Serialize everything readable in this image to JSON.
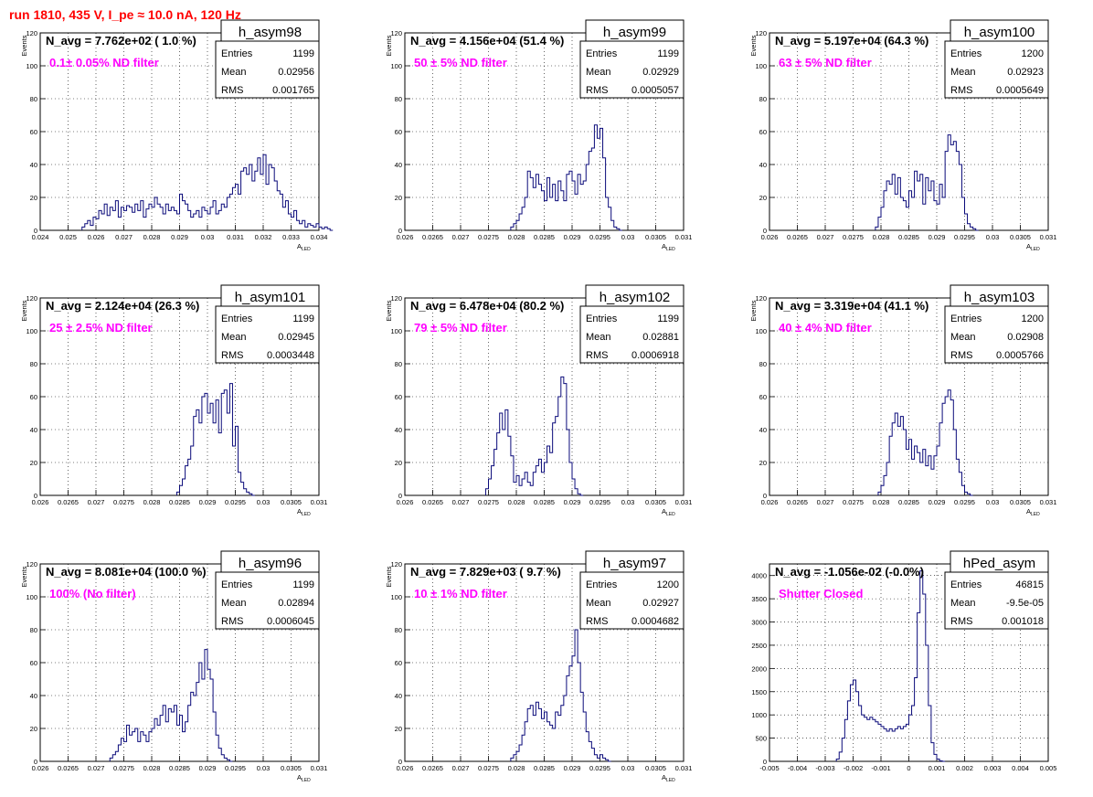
{
  "header": {
    "run_title": "run 1810,   435 V, I_pe ≈ 10.0 nA, 120 Hz"
  },
  "style": {
    "hist_color": "#0a0a7a",
    "annotation_color": "#ff00ff",
    "title_color": "#ff0000"
  },
  "stat_labels": {
    "entries": "Entries",
    "mean": "Mean",
    "rms": "RMS"
  },
  "chart_data": [
    {
      "type": "bar",
      "name": "h_asym98",
      "navg": "N_avg = 7.762e+02 ( 1.0 %)",
      "annotation": "0.1± 0.05% ND filter",
      "entries": "1199",
      "mean": "0.02956",
      "rms": "0.001765",
      "ylabel": "Events",
      "xlabel": "A",
      "xlim": [
        0.024,
        0.034
      ],
      "ylim": [
        0,
        120
      ],
      "xticks": [
        0.024,
        0.025,
        0.026,
        0.027,
        0.028,
        0.029,
        0.03,
        0.031,
        0.032,
        0.033,
        0.034
      ],
      "xtick_labels": [
        "0.024",
        "0.025",
        "0.026",
        "0.027",
        "0.028",
        "0.029",
        "0.03",
        "0.031",
        "0.032",
        "0.033",
        "0.034"
      ],
      "yticks": [
        0,
        20,
        40,
        60,
        80,
        100,
        120
      ],
      "ytick_labels": [
        "0",
        "20",
        "40",
        "60",
        "80",
        "100",
        "120"
      ],
      "bin_start": 0.0255,
      "bin_width": 0.0001,
      "values": [
        2,
        4,
        6,
        3,
        8,
        7,
        12,
        10,
        16,
        9,
        14,
        12,
        18,
        8,
        14,
        12,
        15,
        14,
        11,
        16,
        12,
        18,
        8,
        13,
        16,
        14,
        20,
        16,
        14,
        10,
        16,
        12,
        14,
        12,
        10,
        22,
        18,
        16,
        12,
        8,
        10,
        12,
        8,
        14,
        12,
        10,
        14,
        18,
        10,
        12,
        16,
        14,
        20,
        22,
        26,
        28,
        22,
        36,
        38,
        34,
        40,
        30,
        36,
        44,
        34,
        46,
        28,
        40,
        38,
        30,
        24,
        22,
        14,
        18,
        10,
        8,
        12,
        6,
        4,
        6,
        2,
        4,
        3,
        2,
        4,
        2,
        1,
        2,
        1,
        0
      ]
    },
    {
      "type": "bar",
      "name": "h_asym99",
      "navg": "N_avg = 4.156e+04 (51.4 %)",
      "annotation": "50 ± 5% ND filter",
      "entries": "1199",
      "mean": "0.02929",
      "rms": "0.0005057",
      "ylabel": "Events",
      "xlabel": "A",
      "xlim": [
        0.026,
        0.031
      ],
      "ylim": [
        0,
        120
      ],
      "xticks": [
        0.026,
        0.0265,
        0.027,
        0.0275,
        0.028,
        0.0285,
        0.029,
        0.0295,
        0.03,
        0.0305,
        0.031
      ],
      "xtick_labels": [
        "0.026",
        "0.0265",
        "0.027",
        "0.0275",
        "0.028",
        "0.0285",
        "0.029",
        "0.0295",
        "0.03",
        "0.0305",
        "0.031"
      ],
      "yticks": [
        0,
        20,
        40,
        60,
        80,
        100,
        120
      ],
      "ytick_labels": [
        "0",
        "20",
        "40",
        "60",
        "80",
        "100",
        "120"
      ],
      "bin_start": 0.0279,
      "bin_width": 5e-05,
      "values": [
        2,
        4,
        6,
        10,
        14,
        20,
        36,
        32,
        26,
        34,
        28,
        24,
        18,
        32,
        20,
        28,
        18,
        30,
        24,
        18,
        34,
        36,
        30,
        22,
        34,
        28,
        30,
        40,
        48,
        50,
        64,
        56,
        62,
        44,
        20,
        14,
        6,
        2,
        1,
        0
      ]
    },
    {
      "type": "bar",
      "name": "h_asym100",
      "navg": "N_avg = 5.197e+04 (64.3 %)",
      "annotation": "63 ± 5% ND filter",
      "entries": "1200",
      "mean": "0.02923",
      "rms": "0.0005649",
      "ylabel": "Events",
      "xlabel": "A",
      "xlim": [
        0.026,
        0.031
      ],
      "ylim": [
        0,
        120
      ],
      "xticks": [
        0.026,
        0.0265,
        0.027,
        0.0275,
        0.028,
        0.0285,
        0.029,
        0.0295,
        0.03,
        0.0305,
        0.031
      ],
      "xtick_labels": [
        "0.026",
        "0.0265",
        "0.027",
        "0.0275",
        "0.028",
        "0.0285",
        "0.029",
        "0.0295",
        "0.03",
        "0.0305",
        "0.031"
      ],
      "yticks": [
        0,
        20,
        40,
        60,
        80,
        100,
        120
      ],
      "ytick_labels": [
        "0",
        "20",
        "40",
        "60",
        "80",
        "100",
        "120"
      ],
      "bin_start": 0.0279,
      "bin_width": 5e-05,
      "values": [
        2,
        8,
        14,
        24,
        30,
        28,
        34,
        22,
        32,
        20,
        18,
        14,
        24,
        20,
        36,
        30,
        34,
        16,
        32,
        24,
        30,
        18,
        16,
        28,
        20,
        48,
        58,
        52,
        54,
        48,
        40,
        20,
        10,
        4,
        2,
        1,
        0
      ]
    },
    {
      "type": "bar",
      "name": "h_asym101",
      "navg": "N_avg = 2.124e+04 (26.3 %)",
      "annotation": "25 ± 2.5% ND filter",
      "entries": "1199",
      "mean": "0.02945",
      "rms": "0.0003448",
      "ylabel": "Events",
      "xlabel": "A",
      "xlim": [
        0.026,
        0.031
      ],
      "ylim": [
        0,
        120
      ],
      "xticks": [
        0.026,
        0.0265,
        0.027,
        0.0275,
        0.028,
        0.0285,
        0.029,
        0.0295,
        0.03,
        0.0305,
        0.031
      ],
      "xtick_labels": [
        "0.026",
        "0.0265",
        "0.027",
        "0.0275",
        "0.028",
        "0.0285",
        "0.029",
        "0.0295",
        "0.03",
        "0.0305",
        "0.031"
      ],
      "yticks": [
        0,
        20,
        40,
        60,
        80,
        100,
        120
      ],
      "ytick_labels": [
        "0",
        "20",
        "40",
        "60",
        "80",
        "100",
        "120"
      ],
      "bin_start": 0.02845,
      "bin_width": 5e-05,
      "values": [
        2,
        6,
        10,
        18,
        22,
        30,
        48,
        52,
        44,
        60,
        62,
        50,
        56,
        44,
        58,
        38,
        62,
        64,
        50,
        68,
        30,
        42,
        14,
        8,
        4,
        2,
        1,
        0
      ]
    },
    {
      "type": "bar",
      "name": "h_asym102",
      "navg": "N_avg = 6.478e+04 (80.2 %)",
      "annotation": "79 ± 5% ND filter",
      "entries": "1199",
      "mean": "0.02881",
      "rms": "0.0006918",
      "ylabel": "Events",
      "xlabel": "A",
      "xlim": [
        0.026,
        0.031
      ],
      "ylim": [
        0,
        120
      ],
      "xticks": [
        0.026,
        0.0265,
        0.027,
        0.0275,
        0.028,
        0.0285,
        0.029,
        0.0295,
        0.03,
        0.0305,
        0.031
      ],
      "xtick_labels": [
        "0.026",
        "0.0265",
        "0.027",
        "0.0275",
        "0.028",
        "0.0285",
        "0.029",
        "0.0295",
        "0.03",
        "0.0305",
        "0.031"
      ],
      "yticks": [
        0,
        20,
        40,
        60,
        80,
        100,
        120
      ],
      "ytick_labels": [
        "0",
        "20",
        "40",
        "60",
        "80",
        "100",
        "120"
      ],
      "bin_start": 0.02745,
      "bin_width": 5e-05,
      "values": [
        4,
        10,
        18,
        28,
        38,
        50,
        40,
        52,
        36,
        24,
        8,
        12,
        6,
        10,
        14,
        8,
        6,
        14,
        18,
        22,
        14,
        20,
        30,
        26,
        44,
        48,
        60,
        72,
        68,
        40,
        20,
        10,
        4,
        1,
        0
      ]
    },
    {
      "type": "bar",
      "name": "h_asym103",
      "navg": "N_avg = 3.319e+04 (41.1 %)",
      "annotation": "40 ± 4% ND filter",
      "entries": "1200",
      "mean": "0.02908",
      "rms": "0.0005766",
      "ylabel": "Events",
      "xlabel": "A",
      "xlim": [
        0.026,
        0.031
      ],
      "ylim": [
        0,
        120
      ],
      "xticks": [
        0.026,
        0.0265,
        0.027,
        0.0275,
        0.028,
        0.0285,
        0.029,
        0.0295,
        0.03,
        0.0305,
        0.031
      ],
      "xtick_labels": [
        "0.026",
        "0.0265",
        "0.027",
        "0.0275",
        "0.028",
        "0.0285",
        "0.029",
        "0.0295",
        "0.03",
        "0.0305",
        "0.031"
      ],
      "yticks": [
        0,
        20,
        40,
        60,
        80,
        100,
        120
      ],
      "ytick_labels": [
        "0",
        "20",
        "40",
        "60",
        "80",
        "100",
        "120"
      ],
      "bin_start": 0.02795,
      "bin_width": 5e-05,
      "values": [
        2,
        6,
        12,
        20,
        36,
        44,
        50,
        42,
        48,
        40,
        28,
        34,
        22,
        30,
        26,
        20,
        28,
        18,
        24,
        16,
        24,
        30,
        44,
        56,
        60,
        64,
        58,
        40,
        22,
        14,
        6,
        2,
        1,
        0
      ]
    },
    {
      "type": "bar",
      "name": "h_asym96",
      "navg": "N_avg = 8.081e+04 (100.0 %)",
      "annotation": "100% (No filter)",
      "entries": "1199",
      "mean": "0.02894",
      "rms": "0.0006045",
      "ylabel": "Events",
      "xlabel": "A",
      "xlim": [
        0.026,
        0.031
      ],
      "ylim": [
        0,
        120
      ],
      "xticks": [
        0.026,
        0.0265,
        0.027,
        0.0275,
        0.028,
        0.0285,
        0.029,
        0.0295,
        0.03,
        0.0305,
        0.031
      ],
      "xtick_labels": [
        "0.026",
        "0.0265",
        "0.027",
        "0.0275",
        "0.028",
        "0.0285",
        "0.029",
        "0.0295",
        "0.03",
        "0.0305",
        "0.031"
      ],
      "yticks": [
        0,
        20,
        40,
        60,
        80,
        100,
        120
      ],
      "ytick_labels": [
        "0",
        "20",
        "40",
        "60",
        "80",
        "100",
        "120"
      ],
      "bin_start": 0.02725,
      "bin_width": 5e-05,
      "values": [
        2,
        4,
        6,
        10,
        14,
        12,
        22,
        16,
        18,
        20,
        12,
        18,
        16,
        12,
        18,
        20,
        26,
        22,
        28,
        34,
        24,
        32,
        30,
        34,
        22,
        28,
        18,
        24,
        34,
        42,
        40,
        48,
        60,
        50,
        68,
        56,
        50,
        30,
        16,
        8,
        4,
        2,
        1,
        0
      ]
    },
    {
      "type": "bar",
      "name": "h_asym97",
      "navg": "N_avg = 7.829e+03 ( 9.7 %)",
      "annotation": "10 ± 1% ND filter",
      "entries": "1200",
      "mean": "0.02927",
      "rms": "0.0004682",
      "ylabel": "Events",
      "xlabel": "A",
      "xlim": [
        0.026,
        0.031
      ],
      "ylim": [
        0,
        120
      ],
      "xticks": [
        0.026,
        0.0265,
        0.027,
        0.0275,
        0.028,
        0.0285,
        0.029,
        0.0295,
        0.03,
        0.0305,
        0.031
      ],
      "xtick_labels": [
        "0.026",
        "0.0265",
        "0.027",
        "0.0275",
        "0.028",
        "0.0285",
        "0.029",
        "0.0295",
        "0.03",
        "0.0305",
        "0.031"
      ],
      "yticks": [
        0,
        20,
        40,
        60,
        80,
        100,
        120
      ],
      "ytick_labels": [
        "0",
        "20",
        "40",
        "60",
        "80",
        "100",
        "120"
      ],
      "bin_start": 0.0279,
      "bin_width": 5e-05,
      "values": [
        2,
        4,
        6,
        10,
        16,
        24,
        32,
        34,
        28,
        36,
        32,
        26,
        30,
        24,
        22,
        20,
        30,
        28,
        34,
        40,
        52,
        58,
        64,
        80,
        60,
        42,
        30,
        18,
        12,
        8,
        4,
        2,
        4,
        2,
        1,
        0
      ]
    },
    {
      "type": "bar",
      "name": "hPed_asym",
      "navg": "N_avg = -1.056e-02 (-0.0%)",
      "annotation": "Shutter Closed",
      "entries": "46815",
      "mean": "-9.5e-05",
      "rms": "0.001018",
      "ylabel": "",
      "xlabel": "",
      "xlim": [
        -0.005,
        0.005
      ],
      "ylim": [
        0,
        4250
      ],
      "xticks": [
        -0.005,
        -0.004,
        -0.003,
        -0.002,
        -0.001,
        0,
        0.001,
        0.002,
        0.003,
        0.004,
        0.005
      ],
      "xtick_labels": [
        "-0.005",
        "-0.004",
        "-0.003",
        "-0.002",
        "-0.001",
        "0",
        "0.001",
        "0.002",
        "0.003",
        "0.004",
        "0.005"
      ],
      "yticks": [
        0,
        500,
        1000,
        1500,
        2000,
        2500,
        3000,
        3500,
        4000
      ],
      "ytick_labels": [
        "0",
        "500",
        "1000",
        "1500",
        "2000",
        "2500",
        "3000",
        "3500",
        "4000"
      ],
      "bin_start": -0.0026,
      "bin_width": 0.0001,
      "values": [
        50,
        200,
        500,
        900,
        1300,
        1650,
        1750,
        1500,
        1200,
        1000,
        950,
        900,
        950,
        900,
        850,
        800,
        750,
        700,
        650,
        700,
        650,
        700,
        750,
        700,
        750,
        800,
        1000,
        1200,
        1800,
        3200,
        4100,
        3600,
        2500,
        1200,
        400,
        150,
        50,
        10,
        0
      ]
    }
  ]
}
